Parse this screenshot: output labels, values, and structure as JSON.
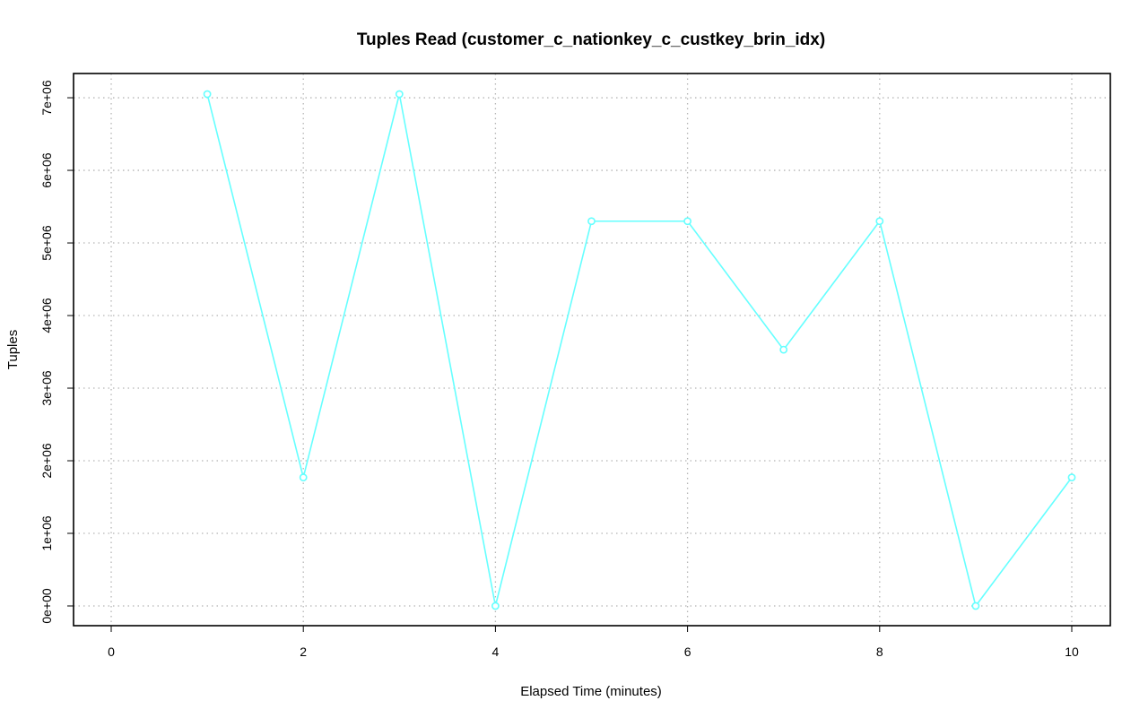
{
  "chart_data": {
    "type": "line",
    "title": "Tuples Read (customer_c_nationkey_c_custkey_brin_idx)",
    "xlabel": "Elapsed Time (minutes)",
    "ylabel": "Tuples",
    "xlim": [
      0,
      10
    ],
    "ylim": [
      0,
      7050000
    ],
    "x_ticks": [
      0,
      2,
      4,
      6,
      8,
      10
    ],
    "x_tick_labels": [
      "0",
      "2",
      "4",
      "6",
      "8",
      "10"
    ],
    "y_ticks": [
      0,
      1000000,
      2000000,
      3000000,
      4000000,
      5000000,
      6000000,
      7000000
    ],
    "y_tick_labels": [
      "0e+00",
      "1e+06",
      "2e+06",
      "3e+06",
      "4e+06",
      "5e+06",
      "6e+06",
      "7e+06"
    ],
    "grid": true,
    "series": [
      {
        "color": "#66ffff",
        "x": [
          1,
          2,
          3,
          4,
          5,
          6,
          7,
          8,
          9,
          10
        ],
        "y": [
          7050000,
          1770000,
          7050000,
          0,
          5300000,
          5300000,
          3530000,
          5300000,
          0,
          1770000
        ]
      }
    ]
  }
}
